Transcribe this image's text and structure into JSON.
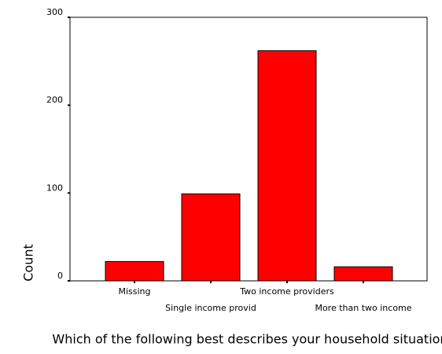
{
  "chart_data": {
    "type": "bar",
    "x_label": "Which of the following best describes your household situation",
    "y_label": "Count",
    "categories": [
      "Missing",
      "Single income provid",
      "Two income providers",
      "More than two income"
    ],
    "values": [
      22,
      99,
      262,
      16
    ],
    "color": "#ff0000",
    "ylim": [
      0,
      300
    ],
    "yticks": [
      0,
      100,
      200,
      300
    ]
  }
}
